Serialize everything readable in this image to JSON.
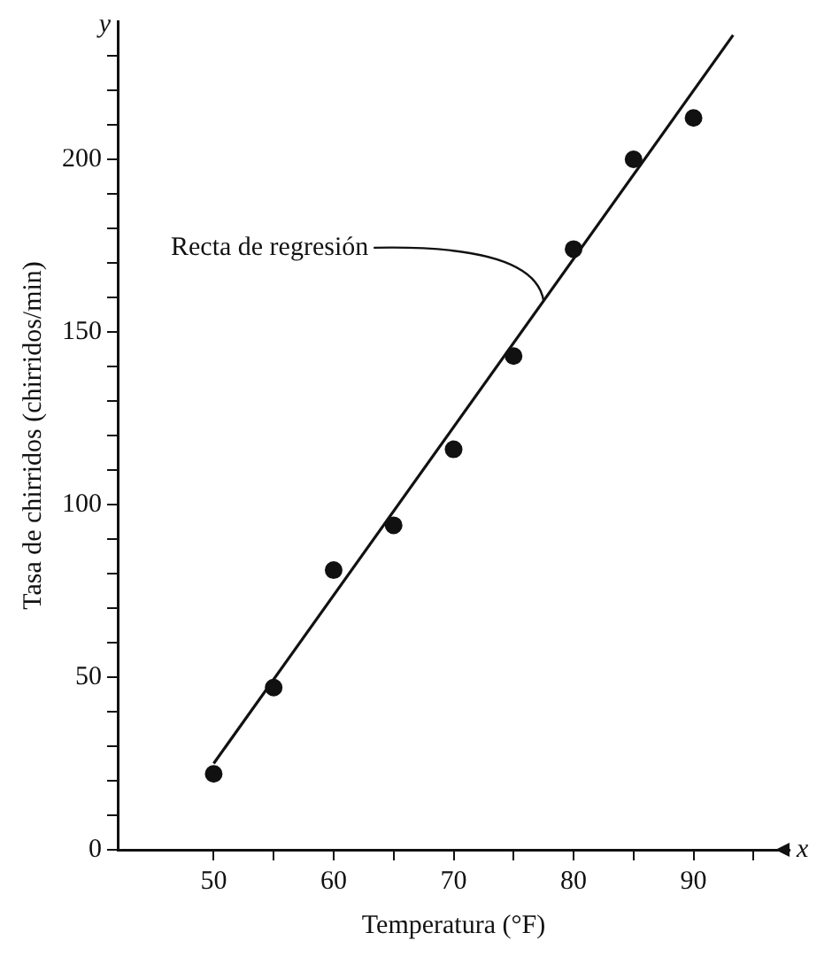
{
  "chart_data": {
    "type": "scatter",
    "xlabel": "Temperatura (°F)",
    "ylabel": "Tasa de chirridos (chirridos/min)",
    "x": [
      50,
      55,
      60,
      65,
      70,
      75,
      80,
      85,
      90
    ],
    "series": [
      {
        "type": "scatter",
        "color": "#111111",
        "values": [
          22,
          47,
          81,
          94,
          116,
          143,
          174,
          200,
          212
        ]
      },
      {
        "type": "line",
        "color": "#111111",
        "x": [
          50,
          93.3
        ],
        "values": [
          25,
          236
        ],
        "marker": "none"
      }
    ],
    "marker": "circle",
    "grid": false,
    "legend": false,
    "xlim": [
      42,
      98
    ],
    "ylim": [
      0,
      240
    ],
    "xticks": [
      50,
      {
        "value": 55,
        "label": null
      },
      60,
      {
        "value": 65,
        "label": null
      },
      70,
      {
        "value": 75,
        "label": null
      },
      80,
      {
        "value": 85,
        "label": null
      },
      90,
      {
        "value": 95,
        "label": null
      }
    ],
    "yticks": [
      0,
      {
        "value": 10,
        "label": null
      },
      {
        "value": 20,
        "label": null
      },
      {
        "value": 30,
        "label": null
      },
      {
        "value": 40,
        "label": null
      },
      50,
      {
        "value": 60,
        "label": null
      },
      {
        "value": 70,
        "label": null
      },
      {
        "value": 80,
        "label": null
      },
      {
        "value": 90,
        "label": null
      },
      100,
      {
        "value": 110,
        "label": null
      },
      {
        "value": 120,
        "label": null
      },
      {
        "value": 130,
        "label": null
      },
      {
        "value": 140,
        "label": null
      },
      150,
      {
        "value": 160,
        "label": null
      },
      {
        "value": 170,
        "label": null
      },
      {
        "value": 180,
        "label": null
      },
      {
        "value": 190,
        "label": null
      },
      200,
      {
        "value": 210,
        "label": null
      },
      {
        "value": 220,
        "label": null
      },
      {
        "value": 230,
        "label": null
      }
    ],
    "annotations": [
      {
        "text": "Recta de regresión",
        "x": 77.5,
        "y": 159
      },
      "x",
      "y"
    ]
  }
}
